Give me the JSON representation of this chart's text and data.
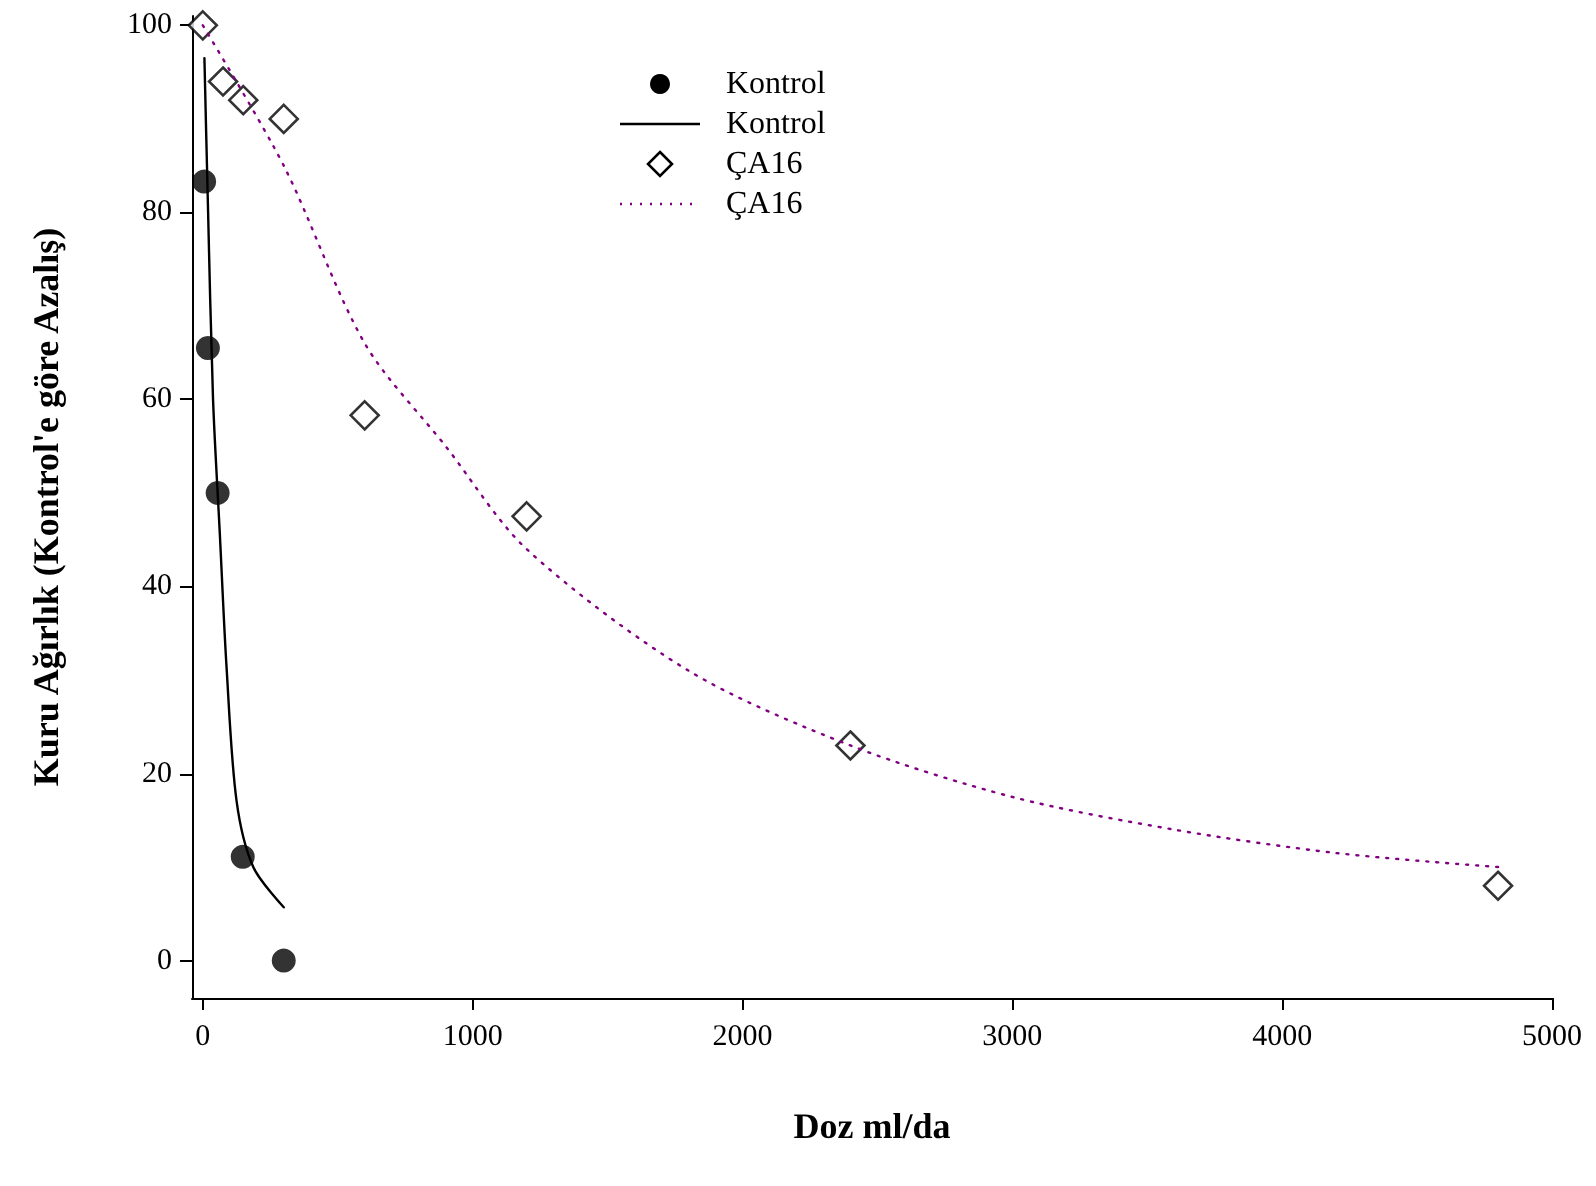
{
  "chart_data": {
    "type": "scatter",
    "xlabel": "Doz ml/da",
    "ylabel": "Kuru Ağırlık (Kontrol'e göre Azalış)",
    "xlim": [
      -40,
      5000
    ],
    "ylim": [
      -4,
      101
    ],
    "xticks": [
      0,
      1000,
      2000,
      3000,
      4000,
      5000
    ],
    "yticks": [
      0,
      20,
      40,
      60,
      80,
      100
    ],
    "grid": false,
    "legend": "top",
    "series": [
      {
        "name": "Kontrol",
        "marker": "circle",
        "color": "#000000",
        "x": [
          5,
          19,
          55,
          148,
          300
        ],
        "values": [
          83.3,
          65.5,
          50,
          11.1,
          0
        ]
      },
      {
        "name": "Kontrol",
        "type": "line",
        "marker": "none",
        "line_style": "solid",
        "color": "#000000",
        "x": [
          6,
          18.5,
          38,
          63,
          88,
          125,
          187,
          300
        ],
        "values": [
          96.5,
          81.4,
          60,
          45.7,
          31.4,
          17.1,
          10,
          5.7
        ]
      },
      {
        "name": "ÇA16",
        "marker": "diamond",
        "color": "#000000",
        "x": [
          0,
          75,
          150,
          300,
          600,
          1200,
          2400,
          4800
        ],
        "values": [
          100,
          94,
          92,
          90,
          58.3,
          47.5,
          23,
          8
        ]
      },
      {
        "name": "ÇA16",
        "type": "line",
        "marker": "none",
        "line_style": "dotted",
        "color": "#800080",
        "x": [
          0,
          300,
          600,
          900,
          1200,
          1800,
          2400,
          3000,
          3600,
          4200,
          4800
        ],
        "values": [
          100,
          85,
          66,
          55,
          44,
          31,
          23,
          17.5,
          14,
          11.5,
          10
        ]
      }
    ]
  }
}
